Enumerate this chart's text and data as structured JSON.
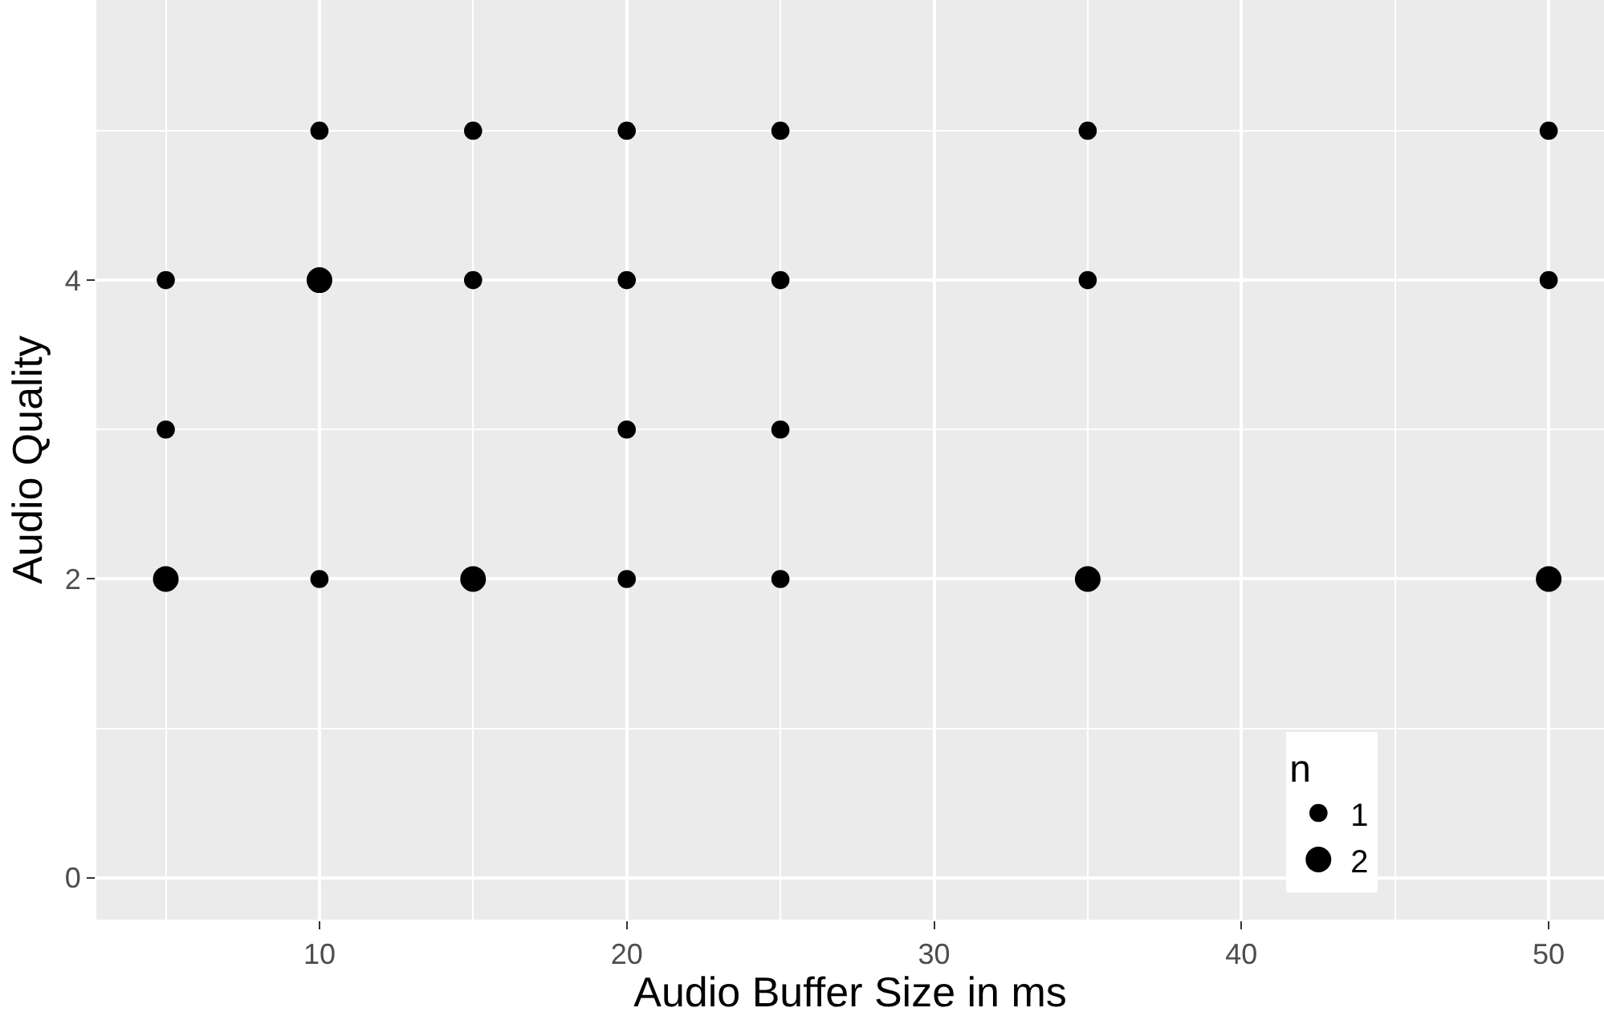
{
  "chart_data": {
    "type": "bubble",
    "xlabel": "Audio Buffer Size in ms",
    "ylabel": "Audio Quality",
    "legend_title": "n",
    "x": [
      5,
      5,
      5,
      10,
      10,
      10,
      15,
      15,
      15,
      20,
      20,
      20,
      20,
      25,
      25,
      25,
      25,
      35,
      35,
      35,
      50,
      50,
      50
    ],
    "values": [
      2,
      3,
      4,
      2,
      4,
      5,
      2,
      4,
      5,
      2,
      3,
      4,
      5,
      2,
      3,
      4,
      5,
      2,
      4,
      5,
      2,
      4,
      5
    ],
    "sizes": [
      2,
      1,
      1,
      1,
      2,
      1,
      2,
      1,
      1,
      1,
      1,
      1,
      1,
      1,
      1,
      1,
      1,
      2,
      1,
      1,
      2,
      1,
      1
    ],
    "size_legend": [
      1,
      2
    ],
    "color": "#000000",
    "xlim": [
      2.74,
      51.8
    ],
    "xticks": [
      10,
      20,
      30,
      40,
      50
    ],
    "ylim": [
      -0.28,
      5.875
    ],
    "yticks": [
      0,
      2,
      4
    ],
    "grid": true,
    "marker": "circle"
  }
}
